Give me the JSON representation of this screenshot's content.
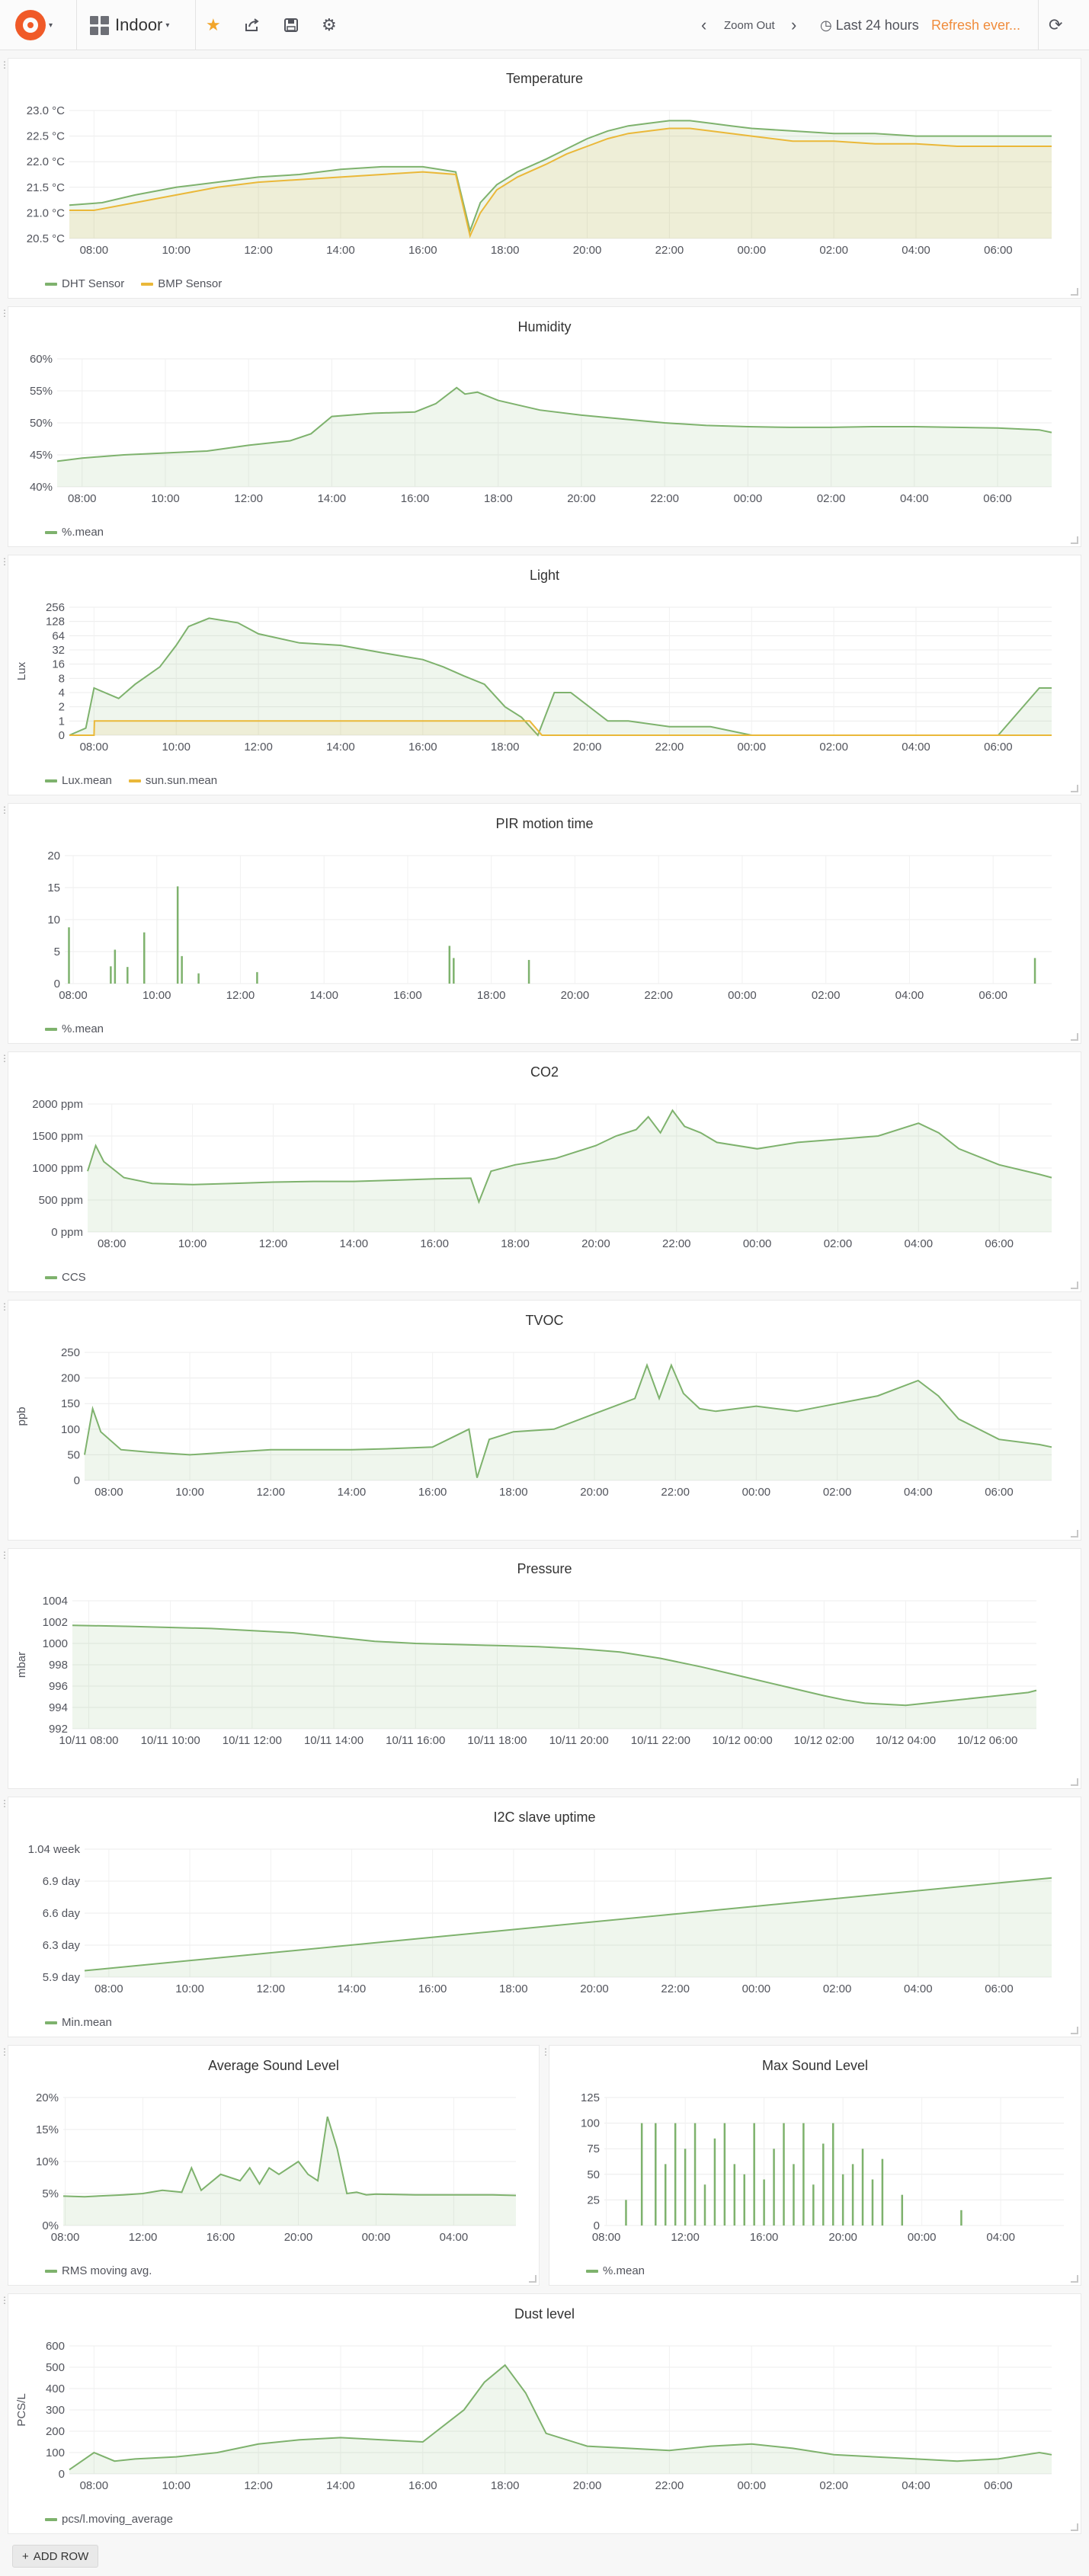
{
  "topbar": {
    "dashboard_title": "Indoor",
    "zoom_out": "Zoom Out",
    "time_range": "Last 24 hours",
    "refresh": "Refresh ever..."
  },
  "colors": {
    "green": "#7eb26d",
    "yellow": "#eab839",
    "refresh_orange": "#f08c3c"
  },
  "add_row": "ADD ROW",
  "chart_data": [
    {
      "type": "line",
      "title": "Temperature",
      "ylabel": "",
      "yticks": [
        "23.0 °C",
        "22.5 °C",
        "22.0 °C",
        "21.5 °C",
        "21.0 °C",
        "20.5 °C"
      ],
      "ylim": [
        20.5,
        23.0
      ],
      "xticks": [
        "08:00",
        "10:00",
        "12:00",
        "14:00",
        "16:00",
        "18:00",
        "20:00",
        "22:00",
        "00:00",
        "02:00",
        "04:00",
        "06:00"
      ],
      "xrange": [
        7.4,
        31.3
      ],
      "series": [
        {
          "name": "DHT Sensor",
          "color": "#7eb26d",
          "x": [
            7.4,
            8.2,
            9,
            10,
            11,
            12,
            13,
            14,
            15,
            16,
            16.8,
            17.15,
            17.4,
            17.8,
            18.3,
            19,
            19.5,
            20,
            20.5,
            21,
            21.5,
            22,
            22.5,
            23,
            23.5,
            24,
            25,
            26,
            27,
            28,
            29,
            30,
            31.3
          ],
          "y": [
            21.15,
            21.2,
            21.35,
            21.5,
            21.6,
            21.7,
            21.75,
            21.85,
            21.9,
            21.9,
            21.8,
            20.65,
            21.2,
            21.55,
            21.8,
            22.05,
            22.25,
            22.45,
            22.6,
            22.7,
            22.75,
            22.8,
            22.8,
            22.75,
            22.7,
            22.65,
            22.6,
            22.55,
            22.55,
            22.5,
            22.5,
            22.5,
            22.5
          ]
        },
        {
          "name": "BMP Sensor",
          "color": "#eab839",
          "x": [
            7.4,
            8,
            9,
            10,
            11,
            12,
            13,
            14,
            15,
            16,
            16.8,
            17.15,
            17.4,
            17.8,
            18.3,
            19,
            19.5,
            20,
            20.5,
            21,
            21.5,
            22,
            22.5,
            23,
            23.5,
            24,
            25,
            26,
            27,
            28,
            29,
            30,
            31.3
          ],
          "y": [
            21.05,
            21.05,
            21.2,
            21.35,
            21.5,
            21.6,
            21.65,
            21.7,
            21.75,
            21.8,
            21.75,
            20.55,
            21.0,
            21.45,
            21.7,
            21.95,
            22.15,
            22.3,
            22.45,
            22.55,
            22.6,
            22.65,
            22.65,
            22.6,
            22.55,
            22.5,
            22.4,
            22.4,
            22.35,
            22.35,
            22.3,
            22.3,
            22.3
          ]
        }
      ]
    },
    {
      "type": "area",
      "title": "Humidity",
      "ylabel": "",
      "yticks": [
        "60%",
        "55%",
        "50%",
        "45%",
        "40%"
      ],
      "ylim": [
        40,
        60
      ],
      "xticks": [
        "08:00",
        "10:00",
        "12:00",
        "14:00",
        "16:00",
        "18:00",
        "20:00",
        "22:00",
        "00:00",
        "02:00",
        "04:00",
        "06:00"
      ],
      "xrange": [
        7.4,
        31.3
      ],
      "series": [
        {
          "name": "%.mean",
          "color": "#7eb26d",
          "x": [
            7.4,
            8,
            9,
            10,
            11,
            12,
            13,
            13.5,
            14,
            15,
            16,
            16.5,
            17,
            17.2,
            17.5,
            18,
            19,
            20,
            21,
            22,
            23,
            24,
            25,
            26,
            27,
            28,
            29,
            30,
            31,
            31.3
          ],
          "y": [
            44,
            44.5,
            45,
            45.3,
            45.6,
            46.5,
            47.2,
            48.3,
            51,
            51.5,
            51.7,
            53,
            55.5,
            54.5,
            54.8,
            53.5,
            52,
            51.2,
            50.6,
            50,
            49.6,
            49.4,
            49.3,
            49.3,
            49.4,
            49.4,
            49.3,
            49.2,
            48.9,
            48.5
          ]
        }
      ]
    },
    {
      "type": "area",
      "title": "Light",
      "ylabel": "Lux",
      "yticks": [
        "256",
        "128",
        "64",
        "32",
        "16",
        "8",
        "4",
        "2",
        "1",
        "0"
      ],
      "ylim": [
        0,
        256
      ],
      "xticks": [
        "08:00",
        "10:00",
        "12:00",
        "14:00",
        "16:00",
        "18:00",
        "20:00",
        "22:00",
        "00:00",
        "02:00",
        "04:00",
        "06:00"
      ],
      "xrange": [
        7.4,
        31.3
      ],
      "series": [
        {
          "name": "Lux.mean",
          "color": "#7eb26d",
          "x": [
            7.4,
            7.8,
            8,
            8.6,
            9,
            9.6,
            10,
            10.3,
            10.8,
            11.5,
            12,
            13,
            14,
            15,
            16,
            16.5,
            17,
            17.5,
            18,
            18.4,
            18.8,
            19.2,
            19.6,
            20.5,
            21,
            22,
            23,
            24,
            24.5,
            25,
            26,
            27,
            28,
            29,
            30,
            31,
            31.3
          ],
          "y": [
            0,
            0.5,
            5,
            3,
            6,
            14,
            40,
            100,
            150,
            120,
            70,
            45,
            40,
            28,
            20,
            14,
            9,
            6,
            2,
            1.2,
            0,
            4,
            4,
            1,
            1,
            0.6,
            0.6,
            0,
            0,
            0,
            0,
            0,
            0,
            0,
            0,
            5,
            5
          ]
        },
        {
          "name": "sun.sun.mean",
          "color": "#eab839",
          "x": [
            7.4,
            8,
            8.01,
            18.6,
            18.9,
            31.3
          ],
          "y": [
            0,
            0,
            1,
            1,
            0,
            0
          ]
        }
      ]
    },
    {
      "type": "bar",
      "title": "PIR motion time",
      "ylabel": "",
      "yticks": [
        "20",
        "15",
        "10",
        "5",
        "0"
      ],
      "ylim": [
        0,
        20
      ],
      "xticks": [
        "08:00",
        "10:00",
        "12:00",
        "14:00",
        "16:00",
        "18:00",
        "20:00",
        "22:00",
        "00:00",
        "02:00",
        "04:00",
        "06:00"
      ],
      "xrange": [
        7.8,
        31.4
      ],
      "series": [
        {
          "name": "%.mean",
          "color": "#7eb26d",
          "x": [
            7.9,
            8.9,
            9.0,
            9.3,
            9.7,
            10.5,
            10.6,
            11.0,
            12.4,
            17.0,
            17.1,
            18.9,
            31.0
          ],
          "y": [
            8.8,
            2.7,
            5.3,
            2.6,
            8,
            15.2,
            4.3,
            1.6,
            1.8,
            5.9,
            4,
            3.7,
            4
          ]
        }
      ]
    },
    {
      "type": "area",
      "title": "CO2",
      "ylabel": "",
      "yticks": [
        "2000 ppm",
        "1500 ppm",
        "1000 ppm",
        "500 ppm",
        "0 ppm"
      ],
      "ylim": [
        0,
        2000
      ],
      "xticks": [
        "08:00",
        "10:00",
        "12:00",
        "14:00",
        "16:00",
        "18:00",
        "20:00",
        "22:00",
        "00:00",
        "02:00",
        "04:00",
        "06:00"
      ],
      "xrange": [
        7.4,
        31.3
      ],
      "series": [
        {
          "name": "CCS",
          "color": "#7eb26d",
          "x": [
            7.4,
            7.6,
            7.8,
            8.3,
            9,
            10,
            11,
            12,
            13,
            14,
            15,
            16,
            16.9,
            17.1,
            17.4,
            18,
            19,
            20,
            20.5,
            21,
            21.3,
            21.6,
            21.9,
            22.2,
            22.6,
            23,
            24,
            25,
            26,
            27,
            28,
            28.5,
            29,
            30,
            31,
            31.3
          ],
          "y": [
            950,
            1350,
            1100,
            850,
            760,
            740,
            760,
            780,
            790,
            790,
            810,
            830,
            840,
            470,
            950,
            1050,
            1150,
            1350,
            1500,
            1600,
            1800,
            1550,
            1900,
            1650,
            1550,
            1400,
            1300,
            1400,
            1450,
            1500,
            1700,
            1550,
            1300,
            1050,
            900,
            850
          ]
        }
      ]
    },
    {
      "type": "area",
      "title": "TVOC",
      "ylabel": "ppb",
      "yticks": [
        "250",
        "200",
        "150",
        "100",
        "50",
        "0"
      ],
      "ylim": [
        0,
        250
      ],
      "xticks": [
        "08:00",
        "10:00",
        "12:00",
        "14:00",
        "16:00",
        "18:00",
        "20:00",
        "22:00",
        "00:00",
        "02:00",
        "04:00",
        "06:00"
      ],
      "xrange": [
        7.4,
        31.3
      ],
      "series": [
        {
          "name": "",
          "color": "#7eb26d",
          "x": [
            7.4,
            7.6,
            7.8,
            8.3,
            9,
            10,
            11,
            12,
            13,
            14,
            15,
            16,
            16.9,
            17.1,
            17.4,
            18,
            19,
            20,
            20.5,
            21,
            21.3,
            21.6,
            21.9,
            22.2,
            22.6,
            23,
            24,
            25,
            26,
            27,
            28,
            28.5,
            29,
            30,
            31,
            31.3
          ],
          "y": [
            50,
            140,
            95,
            60,
            55,
            50,
            55,
            60,
            60,
            60,
            62,
            65,
            100,
            5,
            80,
            95,
            100,
            130,
            145,
            160,
            225,
            160,
            225,
            170,
            140,
            135,
            145,
            135,
            150,
            165,
            195,
            165,
            120,
            80,
            70,
            65
          ]
        }
      ]
    },
    {
      "type": "area",
      "title": "Pressure",
      "ylabel": "mbar",
      "yticks": [
        "1004",
        "1002",
        "1000",
        "998",
        "996",
        "994",
        "992"
      ],
      "ylim": [
        992,
        1004
      ],
      "xticks": [
        "10/11 08:00",
        "10/11 10:00",
        "10/11 12:00",
        "10/11 14:00",
        "10/11 16:00",
        "10/11 18:00",
        "10/11 20:00",
        "10/11 22:00",
        "10/12 00:00",
        "10/12 02:00",
        "10/12 04:00",
        "10/12 06:00"
      ],
      "xrange": [
        7.6,
        31.2
      ],
      "series": [
        {
          "name": "",
          "color": "#7eb26d",
          "x": [
            7.6,
            9,
            11,
            13,
            14,
            15,
            16,
            17,
            18,
            19,
            20,
            21,
            22,
            23,
            24,
            25,
            26,
            26.5,
            27,
            28,
            29,
            30,
            31,
            31.2
          ],
          "y": [
            1001.7,
            1001.6,
            1001.4,
            1001,
            1000.6,
            1000.2,
            1000,
            999.9,
            999.8,
            999.7,
            999.5,
            999.2,
            998.6,
            997.8,
            996.9,
            996.0,
            995.1,
            994.7,
            994.4,
            994.2,
            994.6,
            995.0,
            995.4,
            995.6
          ]
        }
      ]
    },
    {
      "type": "area",
      "title": "I2C slave uptime",
      "ylabel": "",
      "yticks": [
        "1.04 week",
        "6.9 day",
        "6.6 day",
        "6.3 day",
        "5.9 day"
      ],
      "ylim": [
        5.9,
        7.28
      ],
      "xticks": [
        "08:00",
        "10:00",
        "12:00",
        "14:00",
        "16:00",
        "18:00",
        "20:00",
        "22:00",
        "00:00",
        "02:00",
        "04:00",
        "06:00"
      ],
      "xrange": [
        7.4,
        31.3
      ],
      "series": [
        {
          "name": "Min.mean",
          "color": "#7eb26d",
          "x": [
            7.4,
            31.3
          ],
          "y": [
            5.97,
            6.97
          ]
        }
      ]
    },
    {
      "type": "area",
      "title": "Average Sound Level",
      "ylabel": "",
      "yticks": [
        "20%",
        "15%",
        "10%",
        "5%",
        "0%"
      ],
      "ylim": [
        0,
        20
      ],
      "xticks": [
        "08:00",
        "12:00",
        "16:00",
        "20:00",
        "00:00",
        "04:00"
      ],
      "xrange": [
        7.9,
        31.2
      ],
      "series": [
        {
          "name": "RMS moving avg.",
          "color": "#7eb26d",
          "x": [
            7.9,
            9,
            11,
            12,
            13,
            14,
            14.5,
            15,
            16,
            17,
            17.5,
            18,
            18.5,
            19,
            20,
            20.5,
            21,
            21.5,
            22,
            22.5,
            23,
            23.5,
            24,
            26,
            28,
            30,
            31.2
          ],
          "y": [
            4.6,
            4.5,
            4.8,
            5,
            5.5,
            5.2,
            9,
            5.5,
            8,
            7,
            9,
            6.5,
            9,
            8,
            10,
            8,
            7,
            17,
            12,
            5,
            5.2,
            4.8,
            4.9,
            4.8,
            4.8,
            4.8,
            4.7
          ]
        }
      ]
    },
    {
      "type": "bar",
      "title": "Max Sound Level",
      "ylabel": "",
      "yticks": [
        "125",
        "100",
        "75",
        "50",
        "25",
        "0"
      ],
      "ylim": [
        0,
        125
      ],
      "xticks": [
        "08:00",
        "12:00",
        "16:00",
        "20:00",
        "00:00",
        "04:00"
      ],
      "xrange": [
        7.9,
        31.2
      ],
      "series": [
        {
          "name": "%.mean",
          "color": "#7eb26d",
          "x": [
            9,
            9.8,
            10.5,
            11,
            11.5,
            12,
            12.5,
            13,
            13.5,
            14,
            14.5,
            15,
            15.5,
            16,
            16.5,
            17,
            17.5,
            18,
            18.5,
            19,
            19.5,
            20,
            20.5,
            21,
            21.5,
            22,
            23,
            26
          ],
          "y": [
            25,
            100,
            100,
            60,
            100,
            75,
            100,
            40,
            85,
            100,
            60,
            50,
            100,
            45,
            75,
            100,
            60,
            100,
            40,
            80,
            100,
            50,
            60,
            75,
            45,
            65,
            30,
            15
          ]
        }
      ]
    },
    {
      "type": "area",
      "title": "Dust level",
      "ylabel": "PCS/L",
      "yticks": [
        "600",
        "500",
        "400",
        "300",
        "200",
        "100",
        "0"
      ],
      "ylim": [
        0,
        600
      ],
      "xticks": [
        "08:00",
        "10:00",
        "12:00",
        "14:00",
        "16:00",
        "18:00",
        "20:00",
        "22:00",
        "00:00",
        "02:00",
        "04:00",
        "06:00"
      ],
      "xrange": [
        7.4,
        31.3
      ],
      "series": [
        {
          "name": "pcs/l.moving_average",
          "color": "#7eb26d",
          "x": [
            7.4,
            8,
            8.5,
            9,
            10,
            11,
            12,
            13,
            14,
            15,
            16,
            17,
            17.5,
            18,
            18.5,
            19,
            20,
            21,
            22,
            23,
            24,
            25,
            26,
            27,
            28,
            29,
            30,
            31,
            31.3
          ],
          "y": [
            20,
            100,
            60,
            70,
            80,
            100,
            140,
            160,
            170,
            160,
            150,
            300,
            430,
            510,
            380,
            190,
            130,
            120,
            110,
            130,
            140,
            120,
            90,
            80,
            70,
            60,
            70,
            100,
            90
          ]
        }
      ]
    }
  ]
}
